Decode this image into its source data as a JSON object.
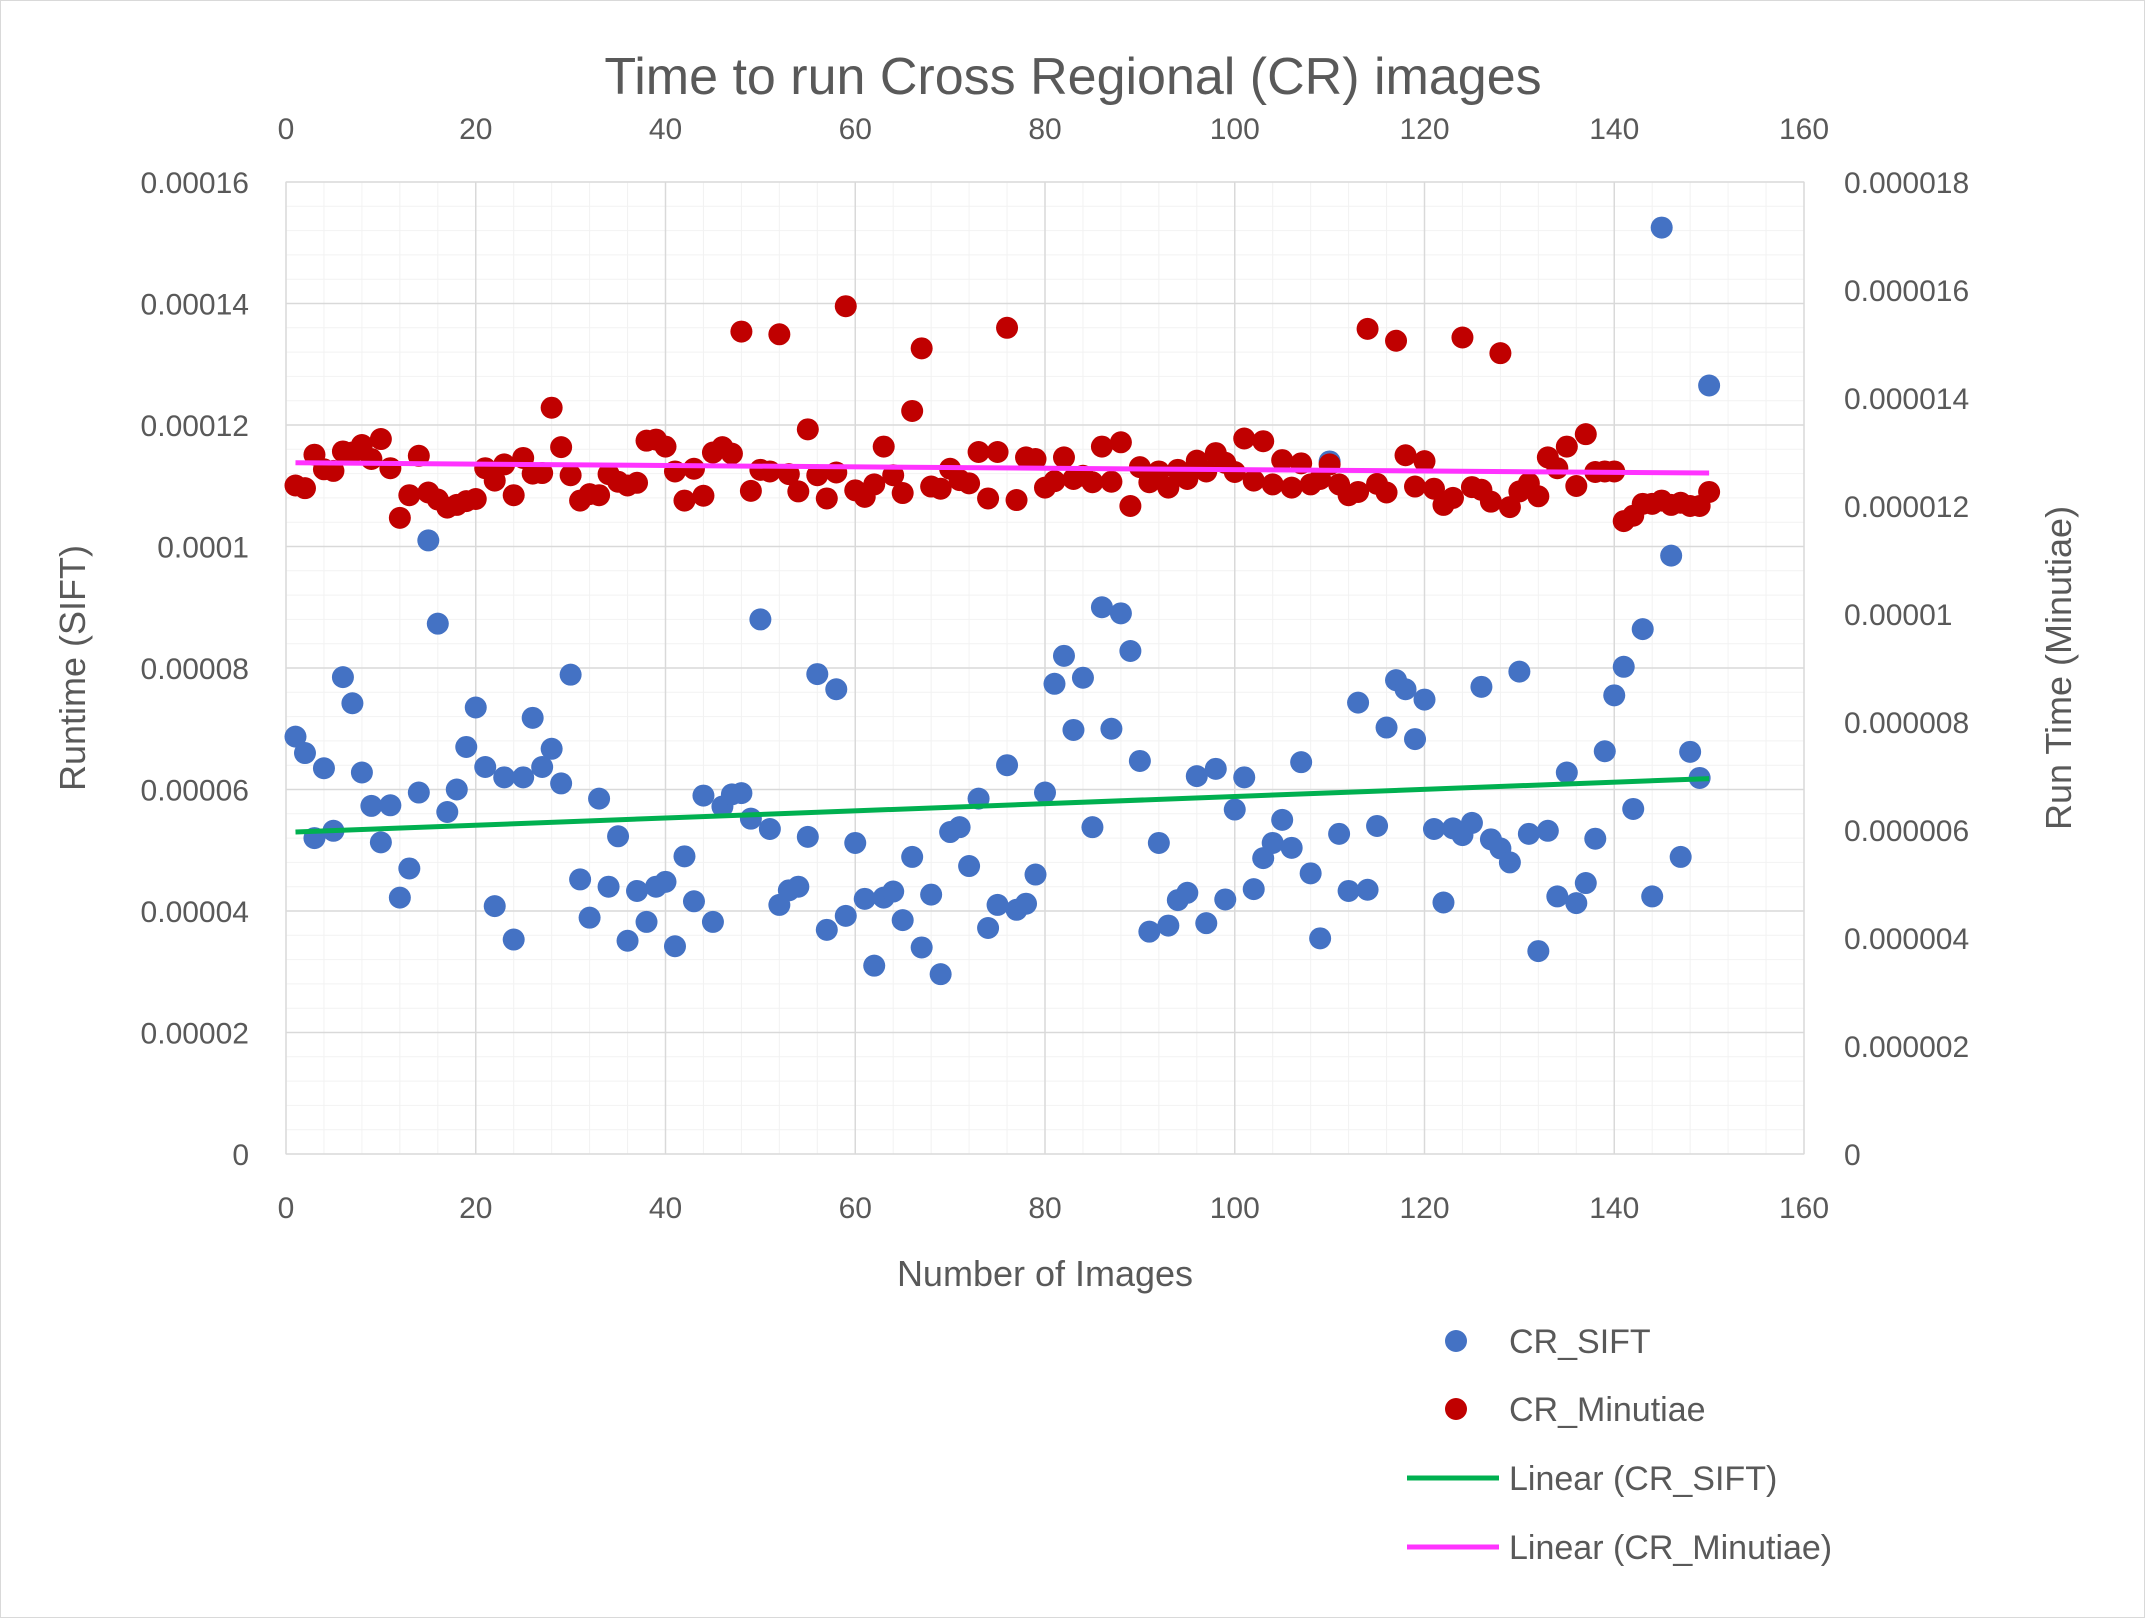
{
  "chart_data": {
    "type": "scatter",
    "title": "Time to run Cross Regional (CR) images",
    "xlabel": "Number of Images",
    "ylabel_left": "Runtime (SIFT)",
    "ylabel_right": "Run Time (Minutiae)",
    "x_range": [
      0,
      160
    ],
    "x_ticks": [
      "0",
      "20",
      "40",
      "60",
      "80",
      "100",
      "120",
      "140",
      "160"
    ],
    "y_left_range": [
      0,
      0.00016
    ],
    "y_left_ticks": [
      "0",
      "0.00002",
      "0.00004",
      "0.00006",
      "0.00008",
      "0.0001",
      "0.00012",
      "0.00014",
      "0.00016"
    ],
    "y_right_range": [
      0,
      1.8e-05
    ],
    "y_right_ticks": [
      "0",
      "0.000002",
      "0.000004",
      "0.000006",
      "0.000008",
      "0.00001",
      "0.000012",
      "0.000014",
      "0.000016",
      "0.000018"
    ],
    "grid": true,
    "legend_position": "bottom-right",
    "series": [
      {
        "name": "CR_SIFT",
        "axis": "left",
        "color": "#4472C4",
        "x": [
          1,
          2,
          3,
          4,
          5,
          6,
          7,
          8,
          9,
          10,
          11,
          12,
          13,
          14,
          15,
          16,
          17,
          18,
          19,
          20,
          21,
          22,
          23,
          24,
          25,
          26,
          27,
          28,
          29,
          30,
          31,
          32,
          33,
          34,
          35,
          36,
          37,
          38,
          39,
          40,
          41,
          42,
          43,
          44,
          45,
          46,
          47,
          48,
          49,
          50,
          51,
          52,
          53,
          54,
          55,
          56,
          57,
          58,
          59,
          60,
          61,
          62,
          63,
          64,
          65,
          66,
          67,
          68,
          69,
          70,
          71,
          72,
          73,
          74,
          75,
          76,
          77,
          78,
          79,
          80,
          81,
          82,
          83,
          84,
          85,
          86,
          87,
          88,
          89,
          90,
          91,
          92,
          93,
          94,
          95,
          96,
          97,
          98,
          99,
          100,
          101,
          102,
          103,
          104,
          105,
          106,
          107,
          108,
          109,
          110,
          111,
          112,
          113,
          114,
          115,
          116,
          117,
          118,
          119,
          120,
          121,
          122,
          123,
          124,
          125,
          126,
          127,
          128,
          129,
          130,
          131,
          132,
          133,
          134,
          135,
          136,
          137,
          138,
          139,
          140,
          141,
          142,
          143,
          144,
          145,
          146,
          147,
          148,
          149,
          150
        ],
        "y": [
          6.87e-05,
          6.6e-05,
          5.2e-05,
          6.35e-05,
          5.32e-05,
          7.85e-05,
          7.42e-05,
          6.28e-05,
          5.73e-05,
          5.13e-05,
          5.74e-05,
          4.22e-05,
          4.7e-05,
          5.95e-05,
          0.000101,
          8.73e-05,
          5.63e-05,
          6e-05,
          6.7e-05,
          7.35e-05,
          6.37e-05,
          4.08e-05,
          6.2e-05,
          3.53e-05,
          6.2e-05,
          7.18e-05,
          6.37e-05,
          6.67e-05,
          6.1e-05,
          7.89e-05,
          4.52e-05,
          3.89e-05,
          5.85e-05,
          4.4e-05,
          5.23e-05,
          3.51e-05,
          4.33e-05,
          3.82e-05,
          4.4e-05,
          4.48e-05,
          3.42e-05,
          4.9e-05,
          4.16e-05,
          5.9e-05,
          3.82e-05,
          5.72e-05,
          5.92e-05,
          5.94e-05,
          5.52e-05,
          8.8e-05,
          5.35e-05,
          4.1e-05,
          4.34e-05,
          4.4e-05,
          5.22e-05,
          7.9e-05,
          3.69e-05,
          7.65e-05,
          3.92e-05,
          5.12e-05,
          4.2e-05,
          3.1e-05,
          4.22e-05,
          4.32e-05,
          3.85e-05,
          4.89e-05,
          3.4e-05,
          4.27e-05,
          2.96e-05,
          5.3e-05,
          5.38e-05,
          4.74e-05,
          5.85e-05,
          3.72e-05,
          4.1e-05,
          6.4e-05,
          4.02e-05,
          4.12e-05,
          4.6e-05,
          5.95e-05,
          7.74e-05,
          8.2e-05,
          6.98e-05,
          7.84e-05,
          5.38e-05,
          9e-05,
          7e-05,
          8.9e-05,
          8.28e-05,
          6.47e-05,
          3.66e-05,
          5.12e-05,
          3.76e-05,
          4.18e-05,
          4.3e-05,
          6.22e-05,
          3.8e-05,
          6.34e-05,
          4.19e-05,
          5.67e-05,
          6.2e-05,
          4.36e-05,
          4.87e-05,
          5.12e-05,
          5.5e-05,
          5.04e-05,
          6.45e-05,
          4.62e-05,
          3.55e-05,
          0.000114,
          5.27e-05,
          4.33e-05,
          7.43e-05,
          4.35e-05,
          5.4e-05,
          7.02e-05,
          7.8e-05,
          7.65e-05,
          6.83e-05,
          7.48e-05,
          5.35e-05,
          4.14e-05,
          5.36e-05,
          5.25e-05,
          5.45e-05,
          7.69e-05,
          5.18e-05,
          5.03e-05,
          4.8e-05,
          7.94e-05,
          5.27e-05,
          3.34e-05,
          5.32e-05,
          4.24e-05,
          6.28e-05,
          4.13e-05,
          4.46e-05,
          5.19e-05,
          6.63e-05,
          7.55e-05,
          8.02e-05,
          5.68e-05,
          8.64e-05,
          4.24e-05,
          0.0001525,
          9.85e-05,
          4.89e-05,
          6.62e-05,
          6.19e-05,
          0.0001265
        ],
        "trendline": {
          "name": "Linear (CR_SIFT)",
          "color": "#00B050",
          "x": [
            1,
            150
          ],
          "y": [
            5.3e-05,
            6.18e-05
          ]
        }
      },
      {
        "name": "CR_Minutiae",
        "axis": "right",
        "color": "#C00000",
        "x": [
          1,
          2,
          3,
          4,
          5,
          6,
          7,
          8,
          9,
          10,
          11,
          12,
          13,
          14,
          15,
          16,
          17,
          18,
          19,
          20,
          21,
          22,
          23,
          24,
          25,
          26,
          27,
          28,
          29,
          30,
          31,
          32,
          33,
          34,
          35,
          36,
          37,
          38,
          39,
          40,
          41,
          42,
          43,
          44,
          45,
          46,
          47,
          48,
          49,
          50,
          51,
          52,
          53,
          54,
          55,
          56,
          57,
          58,
          59,
          60,
          61,
          62,
          63,
          64,
          65,
          66,
          67,
          68,
          69,
          70,
          71,
          72,
          73,
          74,
          75,
          76,
          77,
          78,
          79,
          80,
          81,
          82,
          83,
          84,
          85,
          86,
          87,
          88,
          89,
          90,
          91,
          92,
          93,
          94,
          95,
          96,
          97,
          98,
          99,
          100,
          101,
          102,
          103,
          104,
          105,
          106,
          107,
          108,
          109,
          110,
          111,
          112,
          113,
          114,
          115,
          116,
          117,
          118,
          119,
          120,
          121,
          122,
          123,
          124,
          125,
          126,
          127,
          128,
          129,
          130,
          131,
          132,
          133,
          134,
          135,
          136,
          137,
          138,
          139,
          140,
          141,
          142,
          143,
          144,
          145,
          146,
          147,
          148,
          149,
          150
        ],
        "y": [
          1.238e-05,
          1.233e-05,
          1.295e-05,
          1.268e-05,
          1.265e-05,
          1.301e-05,
          1.299e-05,
          1.313e-05,
          1.287e-05,
          1.324e-05,
          1.27e-05,
          1.178e-05,
          1.22e-05,
          1.293e-05,
          1.225e-05,
          1.212e-05,
          1.197e-05,
          1.202e-05,
          1.209e-05,
          1.213e-05,
          1.27e-05,
          1.247e-05,
          1.277e-05,
          1.22e-05,
          1.289e-05,
          1.26e-05,
          1.261e-05,
          1.382e-05,
          1.309e-05,
          1.257e-05,
          1.21e-05,
          1.222e-05,
          1.22e-05,
          1.259e-05,
          1.245e-05,
          1.238e-05,
          1.243e-05,
          1.321e-05,
          1.323e-05,
          1.31e-05,
          1.264e-05,
          1.21e-05,
          1.269e-05,
          1.219e-05,
          1.299e-05,
          1.309e-05,
          1.297e-05,
          1.523e-05,
          1.228e-05,
          1.267e-05,
          1.264e-05,
          1.518e-05,
          1.259e-05,
          1.227e-05,
          1.342e-05,
          1.257e-05,
          1.214e-05,
          1.262e-05,
          1.57e-05,
          1.229e-05,
          1.217e-05,
          1.24e-05,
          1.31e-05,
          1.257e-05,
          1.224e-05,
          1.376e-05,
          1.492e-05,
          1.236e-05,
          1.232e-05,
          1.269e-05,
          1.248e-05,
          1.242e-05,
          1.3e-05,
          1.214e-05,
          1.3e-05,
          1.53e-05,
          1.211e-05,
          1.29e-05,
          1.287e-05,
          1.234e-05,
          1.246e-05,
          1.29e-05,
          1.25e-05,
          1.256e-05,
          1.244e-05,
          1.31e-05,
          1.245e-05,
          1.318e-05,
          1.2e-05,
          1.272e-05,
          1.244e-05,
          1.264e-05,
          1.234e-05,
          1.267e-05,
          1.25e-05,
          1.284e-05,
          1.264e-05,
          1.298e-05,
          1.28e-05,
          1.263e-05,
          1.325e-05,
          1.247e-05,
          1.32e-05,
          1.24e-05,
          1.285e-05,
          1.234e-05,
          1.279e-05,
          1.24e-05,
          1.25e-05,
          1.277e-05,
          1.24e-05,
          1.22e-05,
          1.226e-05,
          1.528e-05,
          1.241e-05,
          1.225e-05,
          1.506e-05,
          1.294e-05,
          1.236e-05,
          1.283e-05,
          1.232e-05,
          1.202e-05,
          1.215e-05,
          1.512e-05,
          1.235e-05,
          1.23e-05,
          1.208e-05,
          1.483e-05,
          1.198e-05,
          1.227e-05,
          1.242e-05,
          1.218e-05,
          1.29e-05,
          1.27e-05,
          1.31e-05,
          1.237e-05,
          1.333e-05,
          1.263e-05,
          1.264e-05,
          1.264e-05,
          1.172e-05,
          1.182e-05,
          1.204e-05,
          1.204e-05,
          1.21e-05,
          1.202e-05,
          1.206e-05,
          1.2e-05,
          1.2e-05,
          1.226e-05
        ],
        "trendline": {
          "name": "Linear (CR_Minutiae)",
          "color": "#FF33FF",
          "x": [
            1,
            150
          ],
          "y": [
            1.28e-05,
            1.261e-05
          ]
        }
      }
    ]
  }
}
